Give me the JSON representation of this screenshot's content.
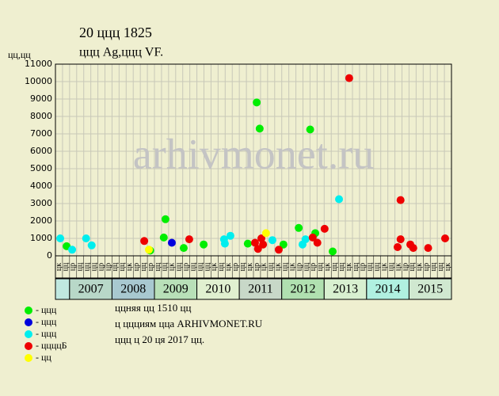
{
  "chart_data": {
    "type": "scatter",
    "title": "20 ццц 1825",
    "subtitle": "ццц Ag,ццц VF.",
    "y_label": "цц,цц",
    "watermark": "arhivmonet.ru",
    "xlim": [
      2006.667,
      2016
    ],
    "ylim": [
      0,
      11000
    ],
    "yticks": [
      0,
      1000,
      2000,
      3000,
      4000,
      5000,
      6000,
      7000,
      8000,
      9000,
      10000,
      11000
    ],
    "grid": true,
    "period_labels": [
      "цк",
      "цц",
      "цр",
      "цц",
      "цц",
      "цц",
      "цр",
      "цр",
      "цц",
      "цц",
      "цк",
      "цр",
      "цц",
      "цр",
      "цц",
      "цц",
      "цк",
      "цц",
      "цр",
      "цц",
      "цц",
      "цц",
      "цк",
      "цц",
      "цк",
      "цр",
      "цц",
      "цк",
      "цр",
      "цк",
      "цц",
      "цк",
      "цц",
      "цк",
      "цр",
      "цц",
      "цр",
      "цц",
      "цк",
      "цц",
      "цц",
      "цк",
      "цц",
      "цр",
      "цц",
      "цц",
      "цк",
      "цц",
      "цк",
      "цр",
      "цц",
      "цк",
      "цр",
      "цц",
      "цц",
      "цк"
    ],
    "years": [
      2007,
      2008,
      2009,
      2010,
      2011,
      2012,
      2013,
      2014,
      2015
    ],
    "year_colors": [
      "#b8d8c8",
      "#a8c8d0",
      "#b8e0b8",
      "#e0f0d0",
      "#c8d8c8",
      "#b0e0b0",
      "#d8f0d0",
      "#b0f0e0",
      "#d0e8d0"
    ],
    "series": [
      {
        "name": "- ццц",
        "color": "#00ee00",
        "x": [
          2006.93,
          2008.9,
          2009.22,
          2009.26,
          2009.69,
          2010.16,
          2011.2,
          2011.41,
          2011.48,
          2012.04,
          2012.4,
          2012.67,
          2012.79,
          2013.2
        ],
        "values": [
          550,
          300,
          1050,
          2100,
          450,
          650,
          700,
          8800,
          7300,
          650,
          1600,
          7250,
          1300,
          250
        ]
      },
      {
        "name": "- ццц",
        "color": "#0000dd",
        "x": [
          2009.41
        ],
        "values": [
          750
        ]
      },
      {
        "name": "- ццц",
        "color": "#00eeee",
        "x": [
          2006.78,
          2007.06,
          2007.39,
          2007.52,
          2010.64,
          2010.66,
          2010.79,
          2011.78,
          2012.49,
          2012.56,
          2013.35
        ],
        "values": [
          1000,
          350,
          1000,
          600,
          950,
          700,
          1150,
          900,
          650,
          950,
          3250
        ]
      },
      {
        "name": "- ццццБ",
        "color": "#ee0000",
        "x": [
          2008.76,
          2009.82,
          2011.37,
          2011.44,
          2011.52,
          2011.56,
          2011.93,
          2012.73,
          2012.84,
          2013.01,
          2013.59,
          2014.73,
          2014.8,
          2014.8,
          2015.03,
          2015.1,
          2015.45,
          2015.85
        ],
        "values": [
          850,
          950,
          750,
          400,
          1000,
          650,
          350,
          1050,
          750,
          1550,
          10200,
          500,
          3200,
          950,
          650,
          450,
          450,
          1000
        ]
      },
      {
        "name": "- цц",
        "color": "#ffff00",
        "x": [
          2008.87,
          2011.63
        ],
        "values": [
          350,
          1300
        ]
      }
    ],
    "notes": [
      "ццняя цц 1510 цц",
      "ц ццциям цца ARHIVMONET.RU",
      "ццц ц 20 ця 2017 цц."
    ]
  }
}
